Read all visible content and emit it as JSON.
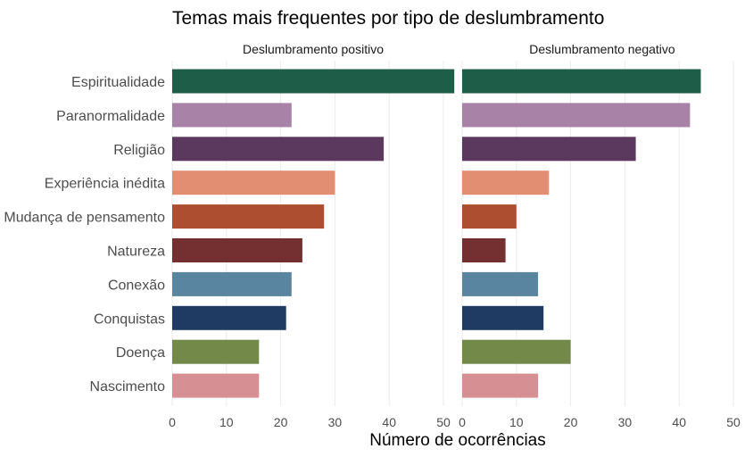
{
  "chart_data": {
    "type": "bar",
    "orientation": "horizontal",
    "title": "Temas mais frequentes por tipo de deslumbramento",
    "xlabel": "Número de ocorrências",
    "ylabel": "",
    "xlim": [
      0,
      52
    ],
    "x_ticks": [
      0,
      10,
      20,
      30,
      40,
      50
    ],
    "grid": "vertical",
    "legend": "none",
    "categories": [
      "Espiritualidade",
      "Paranormalidade",
      "Religião",
      "Experiência inédita",
      "Mudança de pensamento",
      "Natureza",
      "Conexão",
      "Conquistas",
      "Doença",
      "Nascimento"
    ],
    "colors": [
      "#1e5e48",
      "#a983a7",
      "#5b385e",
      "#e28e72",
      "#ac4e2f",
      "#742f31",
      "#5985a0",
      "#1f3a63",
      "#72894a",
      "#d68f92"
    ],
    "series": [
      {
        "name": "Deslumbramento positivo",
        "values": [
          52,
          22,
          39,
          30,
          28,
          24,
          22,
          21,
          16,
          16
        ]
      },
      {
        "name": "Deslumbramento negativo",
        "values": [
          44,
          42,
          32,
          16,
          10,
          8,
          14,
          15,
          20,
          14
        ]
      }
    ]
  }
}
